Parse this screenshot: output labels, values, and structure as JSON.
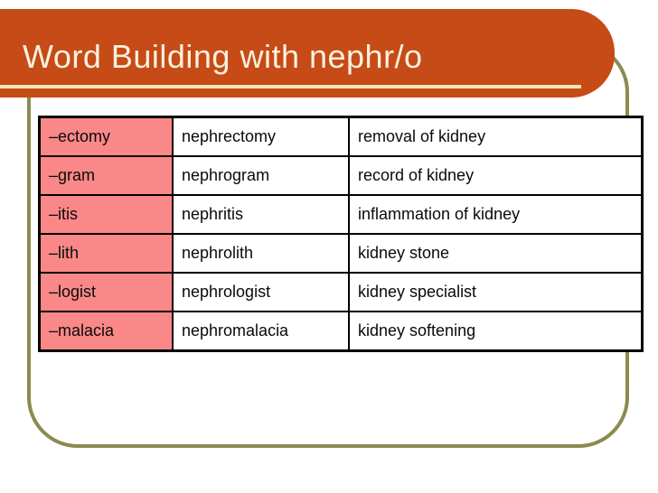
{
  "slide": {
    "title": "Word Building with nephr/o",
    "colors": {
      "banner_bg": "#C74B16",
      "banner_underline": "#F0E9B5",
      "title_text": "#F8F1DE",
      "frame_border": "#8A8B4F",
      "suffix_cell_bg": "#FB8888",
      "table_border": "#000000",
      "cell_text": "#0A0A0A",
      "background": "#FFFFFF"
    },
    "table": {
      "rows": [
        {
          "suffix": "–ectomy",
          "word": "nephrectomy",
          "meaning": "removal of kidney"
        },
        {
          "suffix": "–gram",
          "word": "nephrogram",
          "meaning": "record of kidney"
        },
        {
          "suffix": "–itis",
          "word": "nephritis",
          "meaning": "inflammation of kidney"
        },
        {
          "suffix": "–lith",
          "word": "nephrolith",
          "meaning": "kidney stone"
        },
        {
          "suffix": "–logist",
          "word": "nephrologist",
          "meaning": "kidney specialist"
        },
        {
          "suffix": "–malacia",
          "word": "nephromalacia",
          "meaning": "kidney softening"
        }
      ]
    }
  }
}
